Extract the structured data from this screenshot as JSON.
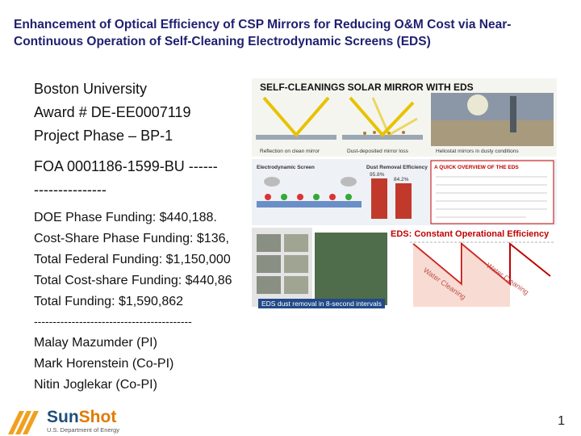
{
  "title": "Enhancement of Optical Efficiency of CSP Mirrors for Reducing O&M Cost via Near-Continuous Operation of Self-Cleaning Electrodynamic Screens (EDS)",
  "institution": "Boston University",
  "award": "Award # DE-EE0007119",
  "phase": "Project Phase – BP-1",
  "foa": "FOA 0001186-1599-BU ------",
  "foa_dashes": "---------------",
  "funding": {
    "doe": "DOE Phase Funding: $440,188.",
    "cost_share": "Cost-Share Phase Funding: $136,",
    "federal": "Total Federal Funding: $1,150,000",
    "cost_share_total": "Total Cost-share Funding: $440,86",
    "total": "Total Funding: $1,590,862"
  },
  "separator": "------------------------------------------",
  "people": [
    "Malay Mazumder (PI)",
    "Mark Horenstein (Co-PI)",
    "Nitin Joglekar (Co-PI)"
  ],
  "collage": {
    "panel1_title": "SELF-CLEANINGS SOLAR MIRROR WITH EDS",
    "panel1_caption_a": "Reflection on clean mirror",
    "panel1_caption_b": "Dust-deposited mirror loss",
    "panel1_caption_c": "Heliostat mirrors in dusty conditions",
    "panel2_label_screen": "Electrodynamic Screen",
    "panel2_label_dust": "Dust Removal Efficiency",
    "panel2_bar_a": "95.8%",
    "panel2_bar_b": "84.2%",
    "panel2_box_title": "A QUICK OVERVIEW OF THE EDS",
    "panel3_title": "EDS: Constant Operational Efficiency",
    "panel3_wave_a": "Water Cleaning",
    "panel3_wave_b": "Water Cleaning",
    "panel3_caption": "EDS dust removal in 8-second intervals"
  },
  "logo": {
    "name_a": "Sun",
    "name_b": "Shot",
    "subtitle": "U.S. Department of Energy"
  },
  "page_number": "1",
  "colors": {
    "title": "#1f1f70",
    "accent_red": "#c00000",
    "logo_blue": "#1f4e79",
    "logo_orange": "#e07b00"
  }
}
